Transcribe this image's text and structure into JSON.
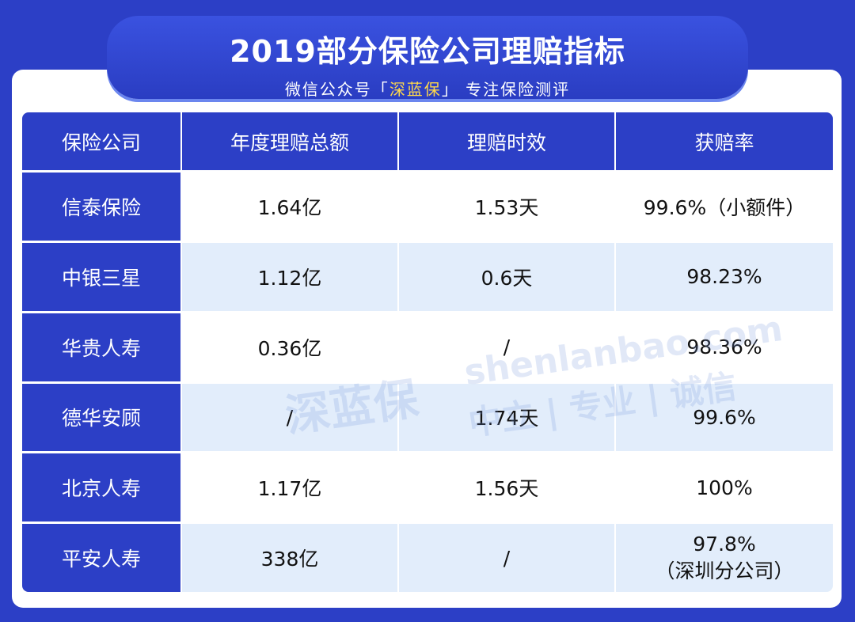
{
  "header": {
    "title": "2019部分保险公司理赔指标",
    "subtitle": {
      "prefix": "微信公众号「",
      "brand": "深蓝保",
      "suffix": "」 专注保险测评"
    }
  },
  "table": {
    "columns": [
      "保险公司",
      "年度理赔总额",
      "理赔时效",
      "获赔率"
    ],
    "rows": [
      [
        "信泰保险",
        "1.64亿",
        "1.53天",
        "99.6%（小额件）"
      ],
      [
        "中银三星",
        "1.12亿",
        "0.6天",
        "98.23%"
      ],
      [
        "华贵人寿",
        "0.36亿",
        "/",
        "98.36%"
      ],
      [
        "德华安顾",
        "/",
        "1.74天",
        "99.6%"
      ],
      [
        "北京人寿",
        "1.17亿",
        "1.56天",
        "100%"
      ],
      [
        "平安人寿",
        "338亿",
        "/",
        [
          "97.8%",
          "（深圳分公司）"
        ]
      ]
    ]
  },
  "watermark": {
    "logo": "深蓝保",
    "site": "shenlanbao.com",
    "motto": "中立 | 专业 | 诚信"
  }
}
